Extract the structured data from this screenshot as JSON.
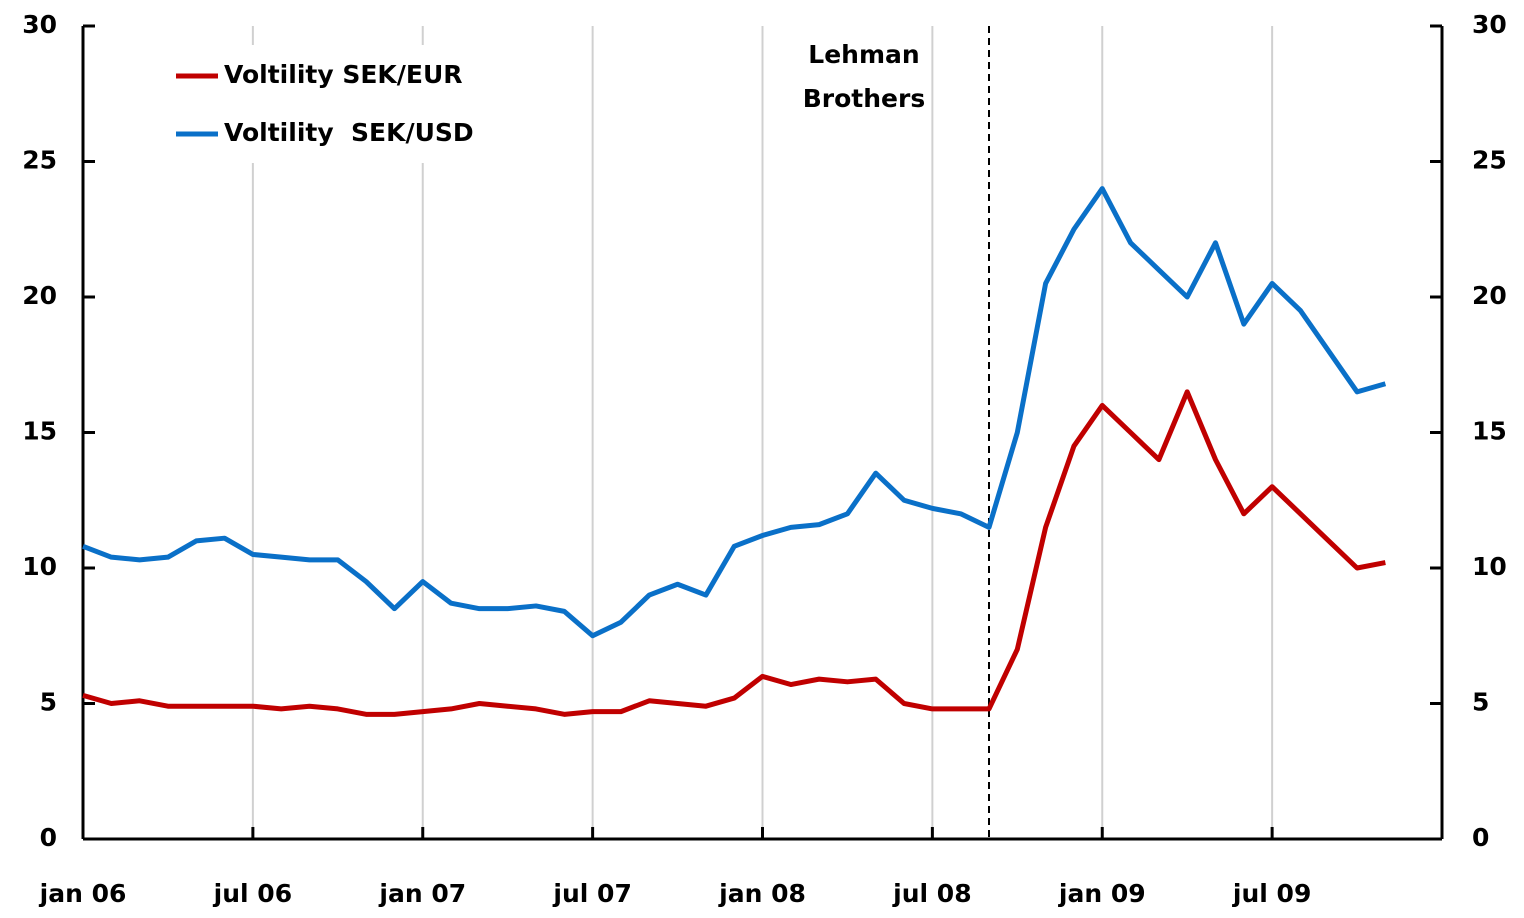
{
  "chart_data": {
    "type": "line",
    "x": [
      "2006-01",
      "2006-02",
      "2006-03",
      "2006-04",
      "2006-05",
      "2006-06",
      "2006-07",
      "2006-08",
      "2006-09",
      "2006-10",
      "2006-11",
      "2006-12",
      "2007-01",
      "2007-02",
      "2007-03",
      "2007-04",
      "2007-05",
      "2007-06",
      "2007-07",
      "2007-08",
      "2007-09",
      "2007-10",
      "2007-11",
      "2007-12",
      "2008-01",
      "2008-02",
      "2008-03",
      "2008-04",
      "2008-05",
      "2008-06",
      "2008-07",
      "2008-08",
      "2008-09",
      "2008-10",
      "2008-11",
      "2008-12",
      "2009-01",
      "2009-02",
      "2009-03",
      "2009-04",
      "2009-05",
      "2009-06",
      "2009-07",
      "2009-08",
      "2009-09",
      "2009-10",
      "2009-11"
    ],
    "series": [
      {
        "name": "Voltility SEK/EUR",
        "color": "#c00000",
        "values": [
          5.3,
          5.0,
          5.1,
          4.9,
          4.9,
          4.9,
          4.9,
          4.8,
          4.9,
          4.8,
          4.6,
          4.6,
          4.7,
          4.8,
          5.0,
          4.9,
          4.8,
          4.6,
          4.7,
          4.7,
          5.1,
          5.0,
          4.9,
          5.2,
          6.0,
          5.7,
          5.9,
          5.8,
          5.9,
          5.0,
          4.8,
          4.8,
          4.8,
          7.0,
          11.5,
          14.5,
          16.0,
          15.0,
          14.0,
          16.5,
          14.0,
          12.0,
          13.0,
          12.0,
          11.0,
          10.0,
          10.2
        ]
      },
      {
        "name": "Voltility  SEK/USD",
        "color": "#0a70c8",
        "values": [
          10.8,
          10.4,
          10.3,
          10.4,
          11.0,
          11.1,
          10.5,
          10.4,
          10.3,
          10.3,
          9.5,
          8.5,
          9.5,
          8.7,
          8.5,
          8.5,
          8.6,
          8.4,
          7.5,
          8.0,
          9.0,
          9.4,
          9.0,
          10.8,
          11.2,
          11.5,
          11.6,
          12.0,
          13.5,
          12.5,
          12.2,
          12.0,
          11.5,
          15.0,
          20.5,
          22.5,
          24.0,
          22.0,
          21.0,
          20.0,
          22.0,
          19.0,
          20.5,
          19.5,
          18.0,
          16.5,
          16.8
        ]
      }
    ],
    "xlim": [
      "2006-01",
      "2010-01"
    ],
    "xticks": [
      {
        "value": "2006-01",
        "label": "jan 06"
      },
      {
        "value": "2006-07",
        "label": "jul 06"
      },
      {
        "value": "2007-01",
        "label": "jan 07"
      },
      {
        "value": "2007-07",
        "label": "jul 07"
      },
      {
        "value": "2008-01",
        "label": "jan 08"
      },
      {
        "value": "2008-07",
        "label": "jul 08"
      },
      {
        "value": "2009-01",
        "label": "jan 09"
      },
      {
        "value": "2009-07",
        "label": "jul 09"
      }
    ],
    "ylim": [
      0,
      30
    ],
    "yticks": [
      0,
      5,
      10,
      15,
      20,
      25,
      30
    ],
    "y2lim": [
      0,
      30
    ],
    "y2ticks": [
      0,
      5,
      10,
      15,
      20,
      25,
      30
    ],
    "grid": "x",
    "legend": "upper left",
    "annotations": [
      {
        "x": "2008-09",
        "lines": [
          "Lehman",
          "Brothers"
        ]
      }
    ]
  }
}
